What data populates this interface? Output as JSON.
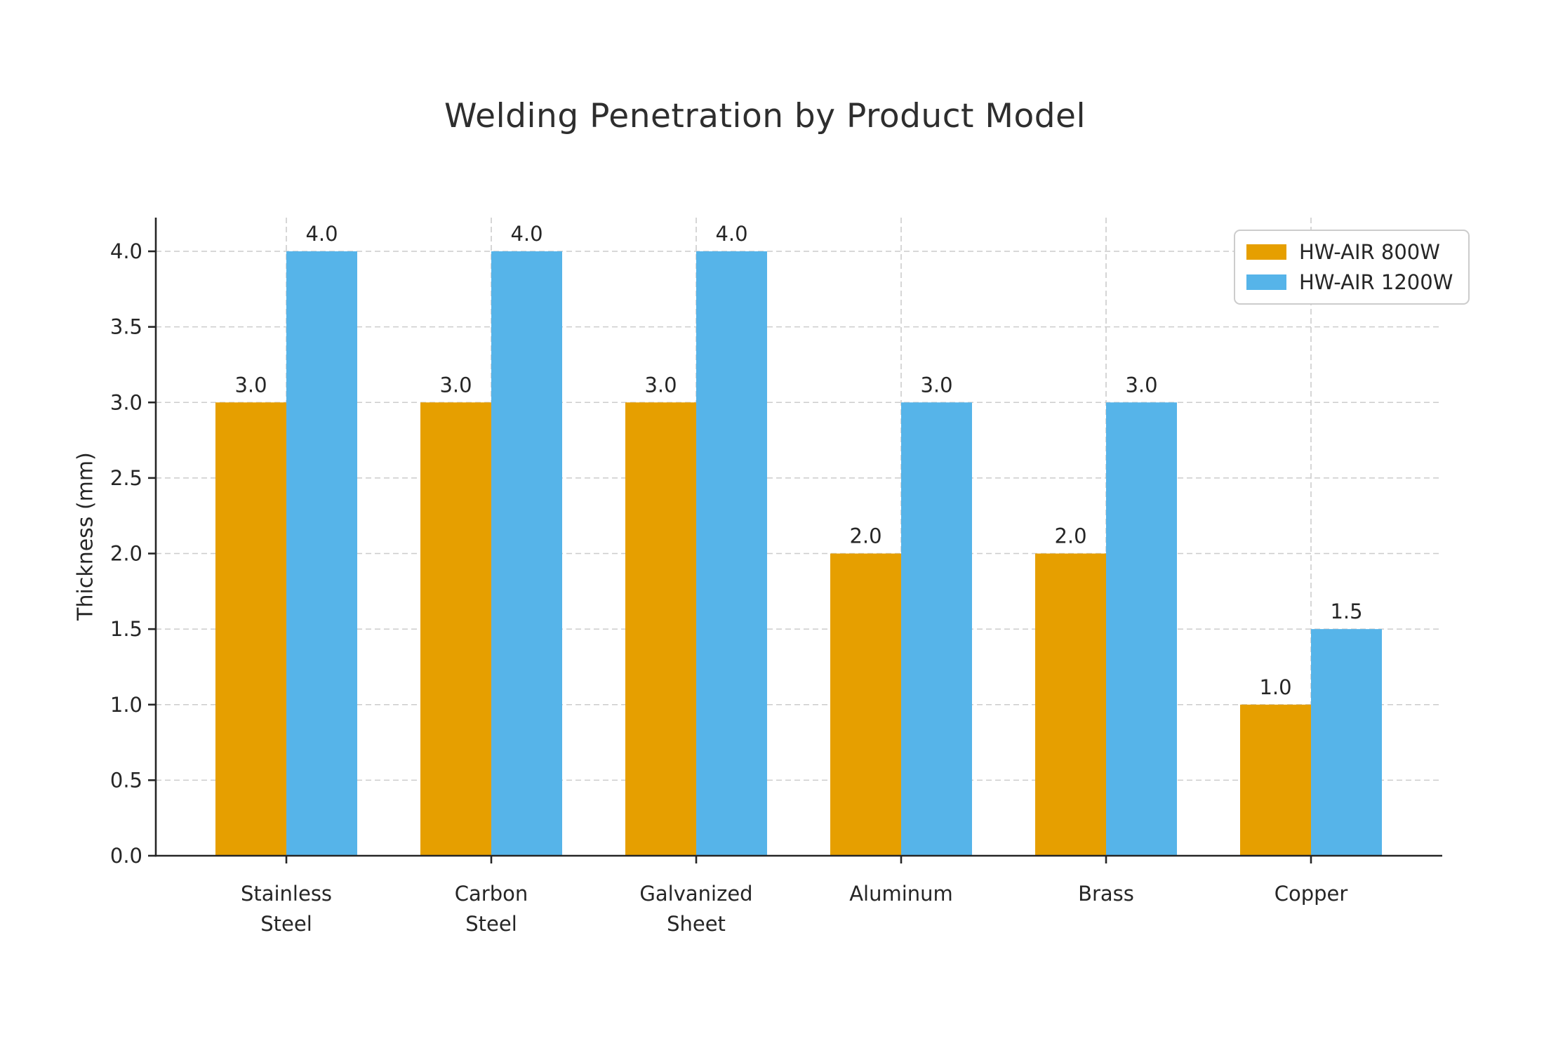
{
  "chart_data": {
    "type": "bar",
    "title": "Welding Penetration by Product Model",
    "xlabel": "",
    "ylabel": "Thickness (mm)",
    "categories": [
      "Stainless\nSteel",
      "Carbon\nSteel",
      "Galvanized\nSheet",
      "Aluminum",
      "Brass",
      "Copper"
    ],
    "series": [
      {
        "name": "HW-AIR 800W",
        "color": "#E69F00",
        "values": [
          3.0,
          3.0,
          3.0,
          2.0,
          2.0,
          1.0
        ]
      },
      {
        "name": "HW-AIR 1200W",
        "color": "#56B4E9",
        "values": [
          4.0,
          4.0,
          4.0,
          3.0,
          3.0,
          1.5
        ]
      }
    ],
    "y_ticks": [
      0.0,
      0.5,
      1.0,
      1.5,
      2.0,
      2.5,
      3.0,
      3.5,
      4.0
    ],
    "ylim": [
      0,
      4.22
    ],
    "bar_value_labels": true,
    "grid": true,
    "legend_position": "upper right"
  },
  "colors": {
    "grid": "#cccccc",
    "axis": "#262626",
    "tick_text": "#262626",
    "value_text": "#262626",
    "background": "#ffffff",
    "legend_border": "#cccccc"
  }
}
